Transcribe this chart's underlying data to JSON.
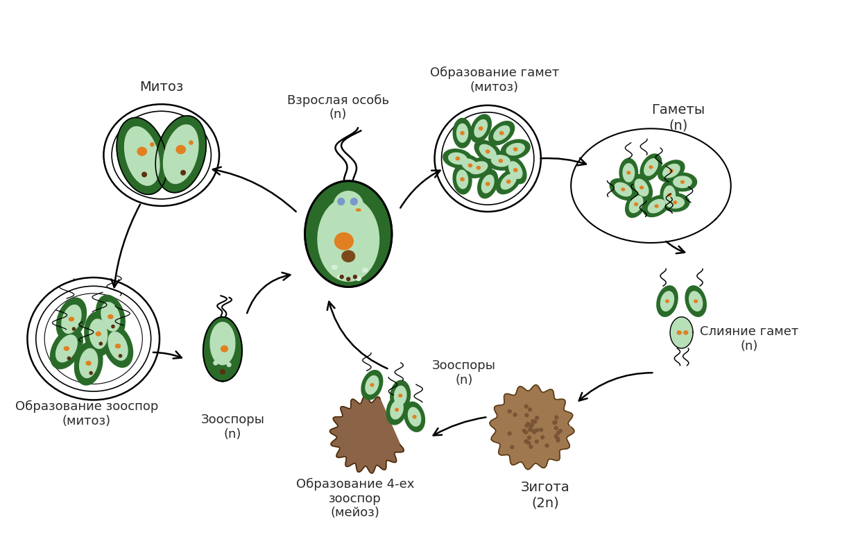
{
  "background_color": "#ffffff",
  "text_color": "#2a2a2a",
  "labels": {
    "mitoz": "Митоз",
    "vzroslaya": "Взрослая особь\n(n)",
    "obrazovanie_gamet": "Образование гамет\n(митоз)",
    "gamety": "Гаметы\n(n)",
    "sliyaniye_gamet": "Слияние гамет\n(n)",
    "zigota": "Зигота\n(2n)",
    "obrazovanie_zoospor_meyoz": "Образование 4-ех\nзооспор\n(мейоз)",
    "zoospory_n_bottom": "Зооспоры\n(n)",
    "obrazovanie_zoospor_mitoz": "Образование зооспор\n(митоз)",
    "zoospory_n_left": "Зооспоры\n(n)"
  },
  "DG": "#2a6b2a",
  "MG": "#3a8c3a",
  "LG": "#b8e0b8",
  "PG": "#d8f0d8",
  "OR": "#e08020",
  "BR": "#7a4a1a",
  "BRD": "#5a3010",
  "BROWN": "#8B6347",
  "BROWN2": "#A07850"
}
